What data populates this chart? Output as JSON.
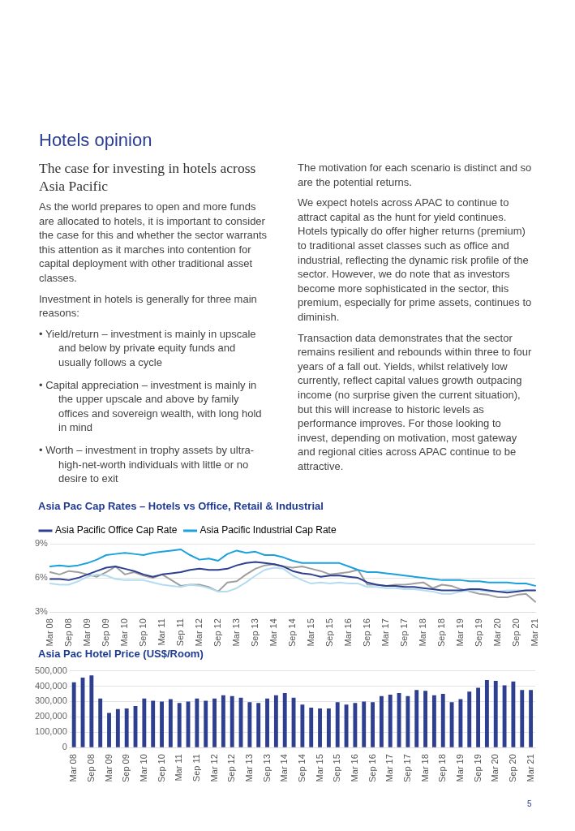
{
  "chart_data": [
    {
      "type": "line",
      "title": "Asia Pac Cap Rates – Hotels vs Office, Retail & Industrial",
      "annotations": [
        "Hotels opinion",
        "The case for investing in hotels across Asia Pacific",
        "As the world prepares to open and more funds are allocated to hotels, it is important to consider the case for this and whether the sector warrants this attention as it marches into contention for capital deployment with other traditional asset classes.",
        "Investment in hotels is generally for three main reasons:",
        "• Yield/return – investment is mainly in upscale and below by private equity funds and usually follows a cycle",
        "• Capital appreciation – investment is mainly in the upper upscale and above by family offices and sovereign wealth, with long hold in mind",
        "• Worth – investment in trophy assets by ultra-high-net-worth individuals with little or no desire to exit",
        "The motivation for each scenario is distinct and so are the potential returns.",
        "We expect hotels across APAC to continue to attract capital as the hunt for yield continues. Hotels typically do offer higher returns (premium) to traditional asset classes such as office and industrial, reflecting the dynamic risk profile of the sector. However, we do note that as investors become more sophisticated in the sector, this premium, especially for prime assets, continues to diminish.",
        "Transaction data demonstrates that the sector remains resilient and rebounds within three to four years of a fall out. Yields, whilst relatively low currently, reflect capital values growth outpacing income (no surprise given the current situation), but this will increase to historic levels as performance improves. For those looking to invest, depending on motivation, most gateway and regional cities across APAC continue to be attractive.",
        "5"
      ],
      "categories": [
        "Mar 08",
        null,
        "Sep 08",
        null,
        "Mar 09",
        null,
        "Sep 09",
        null,
        "Mar 10",
        null,
        "Sep 10",
        null,
        "Mar 11",
        null,
        "Sep 11",
        null,
        "Mar 12",
        null,
        "Sep 12",
        null,
        "Mar 13",
        null,
        "Sep 13",
        null,
        "Mar 14",
        null,
        "Sep 14",
        null,
        "Mar 15",
        null,
        "Sep 15",
        null,
        "Mar 16",
        null,
        "Sep 16",
        null,
        "Mar 17",
        null,
        "Sep 17",
        null,
        "Mar 18",
        null,
        "Sep 18",
        null,
        "Mar 19",
        null,
        "Sep 19",
        null,
        "Mar 20",
        null,
        "Sep 20",
        null,
        "Mar 21"
      ],
      "series": [
        {
          "name": "Asia Pacific Office Cap Rate",
          "color": "#2e3f8f",
          "values": [
            5.9,
            5.9,
            5.8,
            6.0,
            6.3,
            6.6,
            6.9,
            7.0,
            6.8,
            6.6,
            6.3,
            6.1,
            6.3,
            6.4,
            6.5,
            6.7,
            6.8,
            6.7,
            6.7,
            6.8,
            7.1,
            7.3,
            7.4,
            7.3,
            7.2,
            7.0,
            6.6,
            6.4,
            6.3,
            6.1,
            6.2,
            6.2,
            6.1,
            6.0,
            5.6,
            5.4,
            5.3,
            5.3,
            5.2,
            5.2,
            5.1,
            5.0,
            4.9,
            4.9,
            4.9,
            5.0,
            5.0,
            4.9,
            4.8,
            4.7,
            4.8,
            4.9,
            4.9
          ]
        },
        {
          "name": "Asia Pacific Industrial Cap Rate",
          "color": "#1ba1dc",
          "values": [
            7.0,
            7.1,
            7.0,
            7.1,
            7.3,
            7.6,
            8.0,
            8.1,
            8.2,
            8.1,
            8.0,
            8.2,
            8.3,
            8.4,
            8.5,
            8.0,
            7.6,
            7.7,
            7.5,
            8.1,
            8.4,
            8.2,
            8.3,
            8.0,
            8.0,
            7.8,
            7.5,
            7.3,
            7.3,
            7.3,
            7.3,
            7.3,
            7.0,
            6.7,
            6.5,
            6.5,
            6.4,
            6.3,
            6.2,
            6.1,
            6.0,
            5.9,
            5.8,
            5.8,
            5.8,
            5.7,
            5.7,
            5.6,
            5.6,
            5.6,
            5.5,
            5.5,
            5.3
          ]
        },
        {
          "color": "#b4dcf0",
          "values": [
            5.5,
            5.4,
            5.4,
            5.7,
            6.1,
            6.3,
            6.2,
            5.9,
            5.8,
            5.8,
            5.8,
            5.6,
            5.4,
            5.3,
            5.2,
            5.4,
            5.3,
            5.1,
            4.8,
            4.8,
            5.1,
            5.6,
            6.2,
            6.7,
            6.9,
            6.8,
            6.2,
            5.8,
            5.5,
            5.6,
            5.5,
            5.6,
            5.5,
            5.5,
            5.2,
            5.2,
            5.1,
            5.1,
            5.0,
            5.0,
            4.9,
            4.8,
            4.6,
            4.6,
            4.8,
            4.9,
            4.9,
            4.8,
            4.8,
            4.9,
            4.9,
            4.9,
            4.9
          ]
        },
        {
          "color": "#9e9e9e",
          "values": [
            6.5,
            6.3,
            6.6,
            6.5,
            6.3,
            6.1,
            6.5,
            7.0,
            6.3,
            6.5,
            6.2,
            6.0,
            6.3,
            5.8,
            5.3,
            5.4,
            5.4,
            5.2,
            4.8,
            5.6,
            5.7,
            6.3,
            6.8,
            7.1,
            7.2,
            7.0,
            6.9,
            7.0,
            6.8,
            6.6,
            6.3,
            6.4,
            6.5,
            6.7,
            5.4,
            5.4,
            5.3,
            5.4,
            5.4,
            5.5,
            5.6,
            5.1,
            5.4,
            5.3,
            5.0,
            4.8,
            4.6,
            4.5,
            4.3,
            4.3,
            4.5,
            4.6,
            3.9
          ]
        }
      ],
      "ylim": [
        3,
        9
      ],
      "yticks": [
        {
          "value": 3,
          "label": "3%"
        },
        {
          "value": 6,
          "label": "6%"
        },
        {
          "value": 9,
          "label": "9%"
        }
      ],
      "grid": "y",
      "legend": "top",
      "marker": "none",
      "line_style": "solid"
    },
    {
      "type": "bar",
      "title": "Asia Pac Hotel Price (US$/Room)",
      "categories": [
        "Mar 08",
        null,
        "Sep 08",
        null,
        "Mar 09",
        null,
        "Sep 09",
        null,
        "Mar 10",
        null,
        "Sep 10",
        null,
        "Mar 11",
        null,
        "Sep 11",
        null,
        "Mar 12",
        null,
        "Sep 12",
        null,
        "Mar 13",
        null,
        "Sep 13",
        null,
        "Mar 14",
        null,
        "Sep 14",
        null,
        "Mar 15",
        null,
        "Sep 15",
        null,
        "Mar 16",
        null,
        "Sep 16",
        null,
        "Mar 17",
        null,
        "Sep 17",
        null,
        "Mar 18",
        null,
        "Sep 18",
        null,
        "Mar 19",
        null,
        "Sep 19",
        null,
        "Mar 20",
        null,
        "Sep 20",
        null,
        "Mar 21"
      ],
      "values": [
        425000,
        455000,
        470000,
        320000,
        225000,
        250000,
        255000,
        270000,
        320000,
        305000,
        300000,
        315000,
        290000,
        300000,
        320000,
        305000,
        320000,
        340000,
        335000,
        325000,
        295000,
        290000,
        320000,
        340000,
        355000,
        325000,
        280000,
        260000,
        255000,
        255000,
        295000,
        280000,
        290000,
        300000,
        295000,
        335000,
        345000,
        355000,
        335000,
        375000,
        370000,
        340000,
        350000,
        295000,
        315000,
        365000,
        390000,
        440000,
        435000,
        405000,
        430000,
        375000,
        375000
      ],
      "color": "#2e3f8f",
      "ylim": [
        0,
        500000
      ],
      "yticks": [
        0,
        {
          "value": 100000,
          "label": "100,000"
        },
        {
          "value": 200000,
          "label": "200,000"
        },
        {
          "value": 300000,
          "label": "300,000"
        },
        {
          "value": 400000,
          "label": "400,000"
        },
        {
          "value": 500000,
          "label": "500,000"
        }
      ],
      "grid": "y",
      "legend": false
    }
  ]
}
